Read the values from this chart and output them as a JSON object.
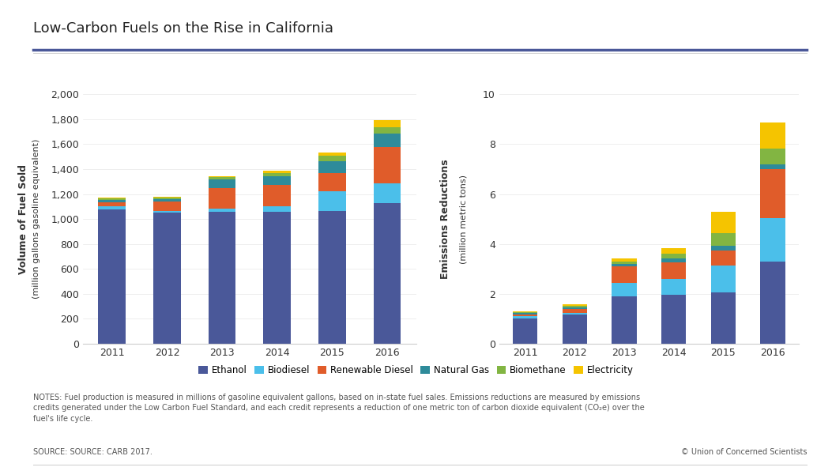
{
  "years": [
    2011,
    2012,
    2013,
    2014,
    2015,
    2016
  ],
  "title": "Low-Carbon Fuels on the Rise in California",
  "left_ylabel1": "Volume of Fuel Sold",
  "left_ylabel2": "(million gallons gasoline equivalent)",
  "right_ylabel1": "Emissions Reductions",
  "right_ylabel2": "(million metric tons)",
  "left_ylim": [
    0,
    2000
  ],
  "right_ylim": [
    0,
    10
  ],
  "left_yticks": [
    0,
    200,
    400,
    600,
    800,
    1000,
    1200,
    1400,
    1600,
    1800,
    2000
  ],
  "right_yticks": [
    0,
    2,
    4,
    6,
    8,
    10
  ],
  "fuel_labels": [
    "Ethanol",
    "Biodiesel",
    "Renewable Diesel",
    "Natural Gas",
    "Biomethane",
    "Electricity"
  ],
  "fuel_colors": [
    "#4a5899",
    "#4bbfea",
    "#e05c2a",
    "#2e8b9a",
    "#82b542",
    "#f5c400"
  ],
  "left_data": {
    "Ethanol": [
      1080,
      1050,
      1055,
      1055,
      1065,
      1125
    ],
    "Biodiesel": [
      20,
      15,
      30,
      50,
      160,
      160
    ],
    "Renewable Diesel": [
      35,
      75,
      165,
      165,
      145,
      295
    ],
    "Natural Gas": [
      20,
      20,
      65,
      75,
      90,
      105
    ],
    "Biomethane": [
      10,
      10,
      20,
      20,
      45,
      50
    ],
    "Electricity": [
      10,
      10,
      10,
      20,
      30,
      60
    ]
  },
  "right_data": {
    "Ethanol": [
      1.02,
      1.18,
      1.9,
      1.95,
      2.05,
      3.3
    ],
    "Biodiesel": [
      0.08,
      0.05,
      0.55,
      0.65,
      1.1,
      1.75
    ],
    "Renewable Diesel": [
      0.08,
      0.18,
      0.65,
      0.65,
      0.6,
      1.95
    ],
    "Natural Gas": [
      0.05,
      0.05,
      0.1,
      0.18,
      0.18,
      0.2
    ],
    "Biomethane": [
      0.03,
      0.06,
      0.1,
      0.18,
      0.5,
      0.62
    ],
    "Electricity": [
      0.04,
      0.07,
      0.12,
      0.22,
      0.85,
      1.05
    ]
  },
  "notes_text": "NOTES: Fuel production is measured in millions of gasoline equivalent gallons, based on in-state fuel sales. Emissions reductions are measured by emissions\ncredits generated under the Low Carbon Fuel Standard, and each credit represents a reduction of one metric ton of carbon dioxide equivalent (CO₂e) over the\nfuel's life cycle.",
  "source_text": "SOURCE: SOURCE: CARB 2017.",
  "copyright_text": "© Union of Concerned Scientists",
  "background_color": "#ffffff",
  "title_color": "#222222",
  "axis_color": "#333333",
  "note_color": "#555555"
}
